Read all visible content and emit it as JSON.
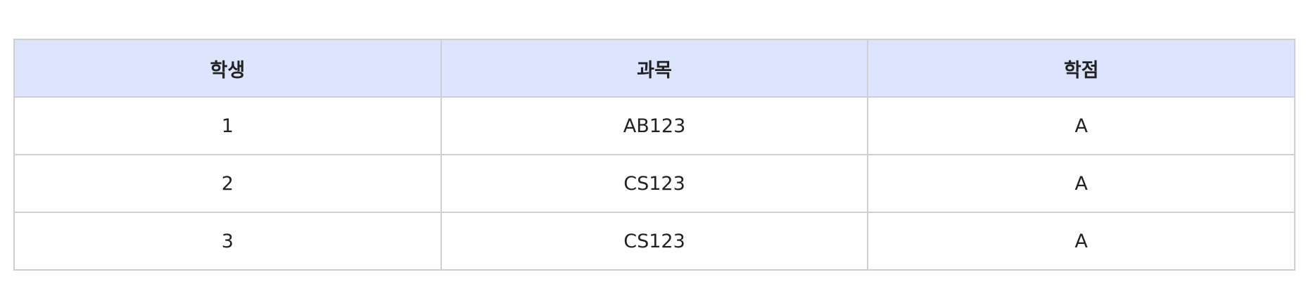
{
  "table": {
    "headers": [
      "학생",
      "과목",
      "학점"
    ],
    "rows": [
      [
        "1",
        "AB123",
        "A"
      ],
      [
        "2",
        "CS123",
        "A"
      ],
      [
        "3",
        "CS123",
        "A"
      ]
    ]
  },
  "colors": {
    "header_background": "#dce5fd",
    "border": "#cfcfd3",
    "cell_background": "#ffffff"
  }
}
